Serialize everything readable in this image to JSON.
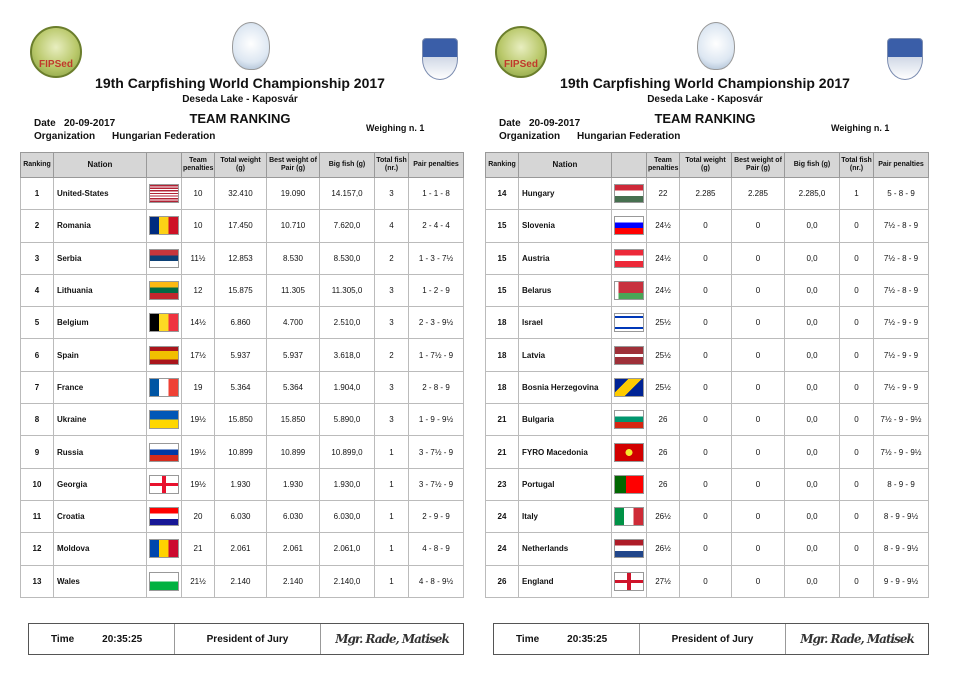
{
  "header": {
    "logo_left_text": "FIPSed",
    "title": "19th Carpfishing World Championship 2017",
    "subtitle": "Deseda Lake - Kaposvár",
    "date_label": "Date",
    "date_value": "20-09-2017",
    "org_label": "Organization",
    "org_value": "Hungarian Federation",
    "heading": "TEAM RANKING",
    "weighing": "Weighing n. 1"
  },
  "columns": [
    "Ranking",
    "Nation",
    "",
    "Team penalties",
    "Total weight (g)",
    "Best weight of Pair (g)",
    "Big fish (g)",
    "Total fish (nr.)",
    "Pair penalties"
  ],
  "left_rows": [
    {
      "rank": "1",
      "nation": "United-States",
      "flag": "us",
      "team": "10",
      "total": "32.410",
      "pair": "19.090",
      "big": "14.157,0",
      "fish": "3",
      "pp": "1 - 1 - 8"
    },
    {
      "rank": "2",
      "nation": "Romania",
      "flag": "ro",
      "team": "10",
      "total": "17.450",
      "pair": "10.710",
      "big": "7.620,0",
      "fish": "4",
      "pp": "2 - 4 - 4"
    },
    {
      "rank": "3",
      "nation": "Serbia",
      "flag": "rs",
      "team": "11½",
      "total": "12.853",
      "pair": "8.530",
      "big": "8.530,0",
      "fish": "2",
      "pp": "1 - 3 - 7½"
    },
    {
      "rank": "4",
      "nation": "Lithuania",
      "flag": "lt",
      "team": "12",
      "total": "15.875",
      "pair": "11.305",
      "big": "11.305,0",
      "fish": "3",
      "pp": "1 - 2 - 9"
    },
    {
      "rank": "5",
      "nation": "Belgium",
      "flag": "be",
      "team": "14½",
      "total": "6.860",
      "pair": "4.700",
      "big": "2.510,0",
      "fish": "3",
      "pp": "2 - 3 - 9½"
    },
    {
      "rank": "6",
      "nation": "Spain",
      "flag": "es",
      "team": "17½",
      "total": "5.937",
      "pair": "5.937",
      "big": "3.618,0",
      "fish": "2",
      "pp": "1 - 7½ - 9"
    },
    {
      "rank": "7",
      "nation": "France",
      "flag": "fr",
      "team": "19",
      "total": "5.364",
      "pair": "5.364",
      "big": "1.904,0",
      "fish": "3",
      "pp": "2 - 8 - 9"
    },
    {
      "rank": "8",
      "nation": "Ukraine",
      "flag": "ua",
      "team": "19½",
      "total": "15.850",
      "pair": "15.850",
      "big": "5.890,0",
      "fish": "3",
      "pp": "1 - 9 - 9½"
    },
    {
      "rank": "9",
      "nation": "Russia",
      "flag": "ru",
      "team": "19½",
      "total": "10.899",
      "pair": "10.899",
      "big": "10.899,0",
      "fish": "1",
      "pp": "3 - 7½ - 9"
    },
    {
      "rank": "10",
      "nation": "Georgia",
      "flag": "ge",
      "team": "19½",
      "total": "1.930",
      "pair": "1.930",
      "big": "1.930,0",
      "fish": "1",
      "pp": "3 - 7½ - 9"
    },
    {
      "rank": "11",
      "nation": "Croatia",
      "flag": "hr",
      "team": "20",
      "total": "6.030",
      "pair": "6.030",
      "big": "6.030,0",
      "fish": "1",
      "pp": "2 - 9 - 9"
    },
    {
      "rank": "12",
      "nation": "Moldova",
      "flag": "md",
      "team": "21",
      "total": "2.061",
      "pair": "2.061",
      "big": "2.061,0",
      "fish": "1",
      "pp": "4 - 8 - 9"
    },
    {
      "rank": "13",
      "nation": "Wales",
      "flag": "wales",
      "team": "21½",
      "total": "2.140",
      "pair": "2.140",
      "big": "2.140,0",
      "fish": "1",
      "pp": "4 - 8 - 9½"
    }
  ],
  "right_rows": [
    {
      "rank": "14",
      "nation": "Hungary",
      "flag": "hu",
      "team": "22",
      "total": "2.285",
      "pair": "2.285",
      "big": "2.285,0",
      "fish": "1",
      "pp": "5 - 8 - 9"
    },
    {
      "rank": "15",
      "nation": "Slovenia",
      "flag": "si",
      "team": "24½",
      "total": "0",
      "pair": "0",
      "big": "0,0",
      "fish": "0",
      "pp": "7½ - 8 - 9"
    },
    {
      "rank": "15",
      "nation": "Austria",
      "flag": "at",
      "team": "24½",
      "total": "0",
      "pair": "0",
      "big": "0,0",
      "fish": "0",
      "pp": "7½ - 8 - 9"
    },
    {
      "rank": "15",
      "nation": "Belarus",
      "flag": "by",
      "team": "24½",
      "total": "0",
      "pair": "0",
      "big": "0,0",
      "fish": "0",
      "pp": "7½ - 8 - 9"
    },
    {
      "rank": "18",
      "nation": "Israel",
      "flag": "il",
      "team": "25½",
      "total": "0",
      "pair": "0",
      "big": "0,0",
      "fish": "0",
      "pp": "7½ - 9 - 9"
    },
    {
      "rank": "18",
      "nation": "Latvia",
      "flag": "lv",
      "team": "25½",
      "total": "0",
      "pair": "0",
      "big": "0,0",
      "fish": "0",
      "pp": "7½ - 9 - 9"
    },
    {
      "rank": "18",
      "nation": "Bosnia Herzegovina",
      "flag": "ba",
      "team": "25½",
      "total": "0",
      "pair": "0",
      "big": "0,0",
      "fish": "0",
      "pp": "7½ - 9 - 9"
    },
    {
      "rank": "21",
      "nation": "Bulgaria",
      "flag": "bg",
      "team": "26",
      "total": "0",
      "pair": "0",
      "big": "0,0",
      "fish": "0",
      "pp": "7½ - 9 - 9½"
    },
    {
      "rank": "21",
      "nation": "FYRO Macedonia",
      "flag": "mk",
      "team": "26",
      "total": "0",
      "pair": "0",
      "big": "0,0",
      "fish": "0",
      "pp": "7½ - 9 - 9½"
    },
    {
      "rank": "23",
      "nation": "Portugal",
      "flag": "pt",
      "team": "26",
      "total": "0",
      "pair": "0",
      "big": "0,0",
      "fish": "0",
      "pp": "8 - 9 - 9"
    },
    {
      "rank": "24",
      "nation": "Italy",
      "flag": "it",
      "team": "26½",
      "total": "0",
      "pair": "0",
      "big": "0,0",
      "fish": "0",
      "pp": "8 - 9 - 9½"
    },
    {
      "rank": "24",
      "nation": "Netherlands",
      "flag": "nl",
      "team": "26½",
      "total": "0",
      "pair": "0",
      "big": "0,0",
      "fish": "0",
      "pp": "8 - 9 - 9½"
    },
    {
      "rank": "26",
      "nation": "England",
      "flag": "en",
      "team": "27½",
      "total": "0",
      "pair": "0",
      "big": "0,0",
      "fish": "0",
      "pp": "9 - 9 - 9½"
    }
  ],
  "footer": {
    "time_label": "Time",
    "time_value": "20:35:25",
    "jury_label": "President of Jury",
    "signature": "Mgr. Rade, Matisek"
  }
}
